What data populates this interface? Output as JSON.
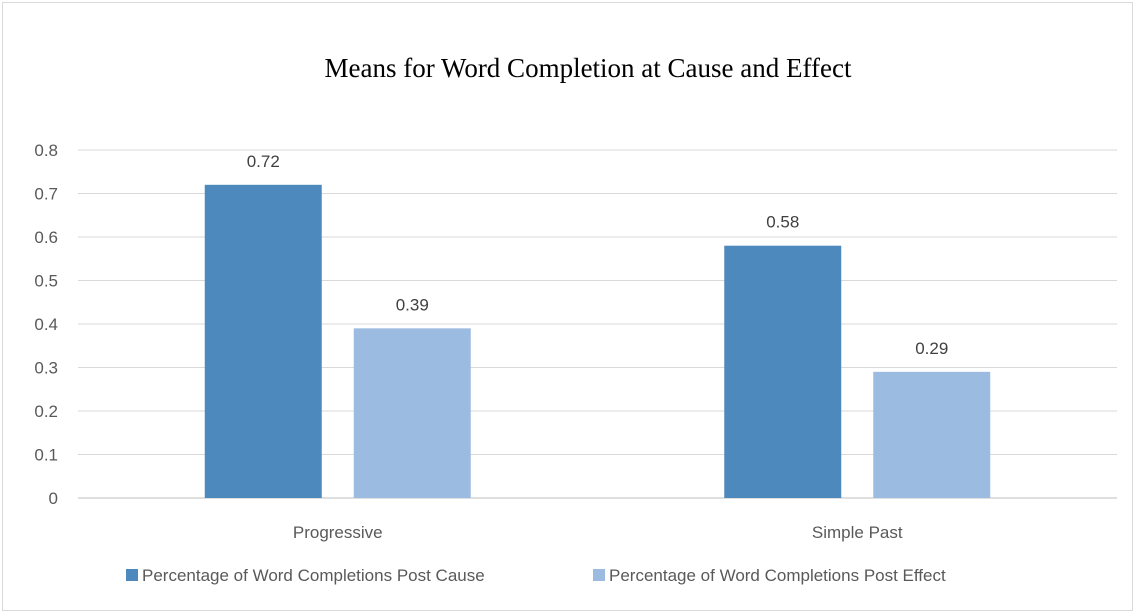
{
  "chart_data": {
    "type": "bar",
    "title": "Means for Word Completion at Cause and Effect",
    "xlabel": "",
    "ylabel": "",
    "categories": [
      "Progressive",
      "Simple Past"
    ],
    "series": [
      {
        "name": "Percentage of Word Completions Post Cause",
        "values": [
          0.72,
          0.58
        ],
        "color": "#4e89be",
        "labels": [
          "0.72",
          "0.58"
        ]
      },
      {
        "name": "Percentage of Word Completions Post Effect",
        "values": [
          0.39,
          0.29
        ],
        "color": "#9bbbe0",
        "labels": [
          "0.39",
          "0.29"
        ]
      }
    ],
    "ylim": [
      0,
      0.8
    ],
    "yticks": [
      0,
      0.1,
      0.2,
      0.3,
      0.4,
      0.5,
      0.6,
      0.7,
      0.8
    ],
    "ytick_labels": [
      "0",
      "0.1",
      "0.2",
      "0.3",
      "0.4",
      "0.5",
      "0.6",
      "0.7",
      "0.8"
    ],
    "grid": true,
    "legend_position": "bottom"
  }
}
